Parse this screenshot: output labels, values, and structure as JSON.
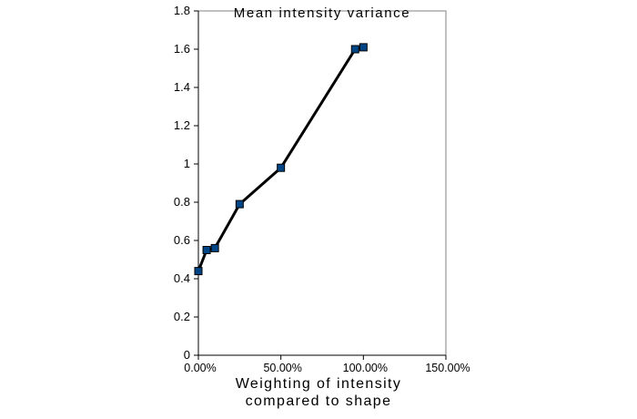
{
  "title_text": "Mean intensity variance",
  "x_axis_label_line1": "Weighting of intensity",
  "x_axis_label_line2": "compared to  shape",
  "chart_data": {
    "type": "line",
    "title": "Mean intensity variance",
    "xlabel": "Weighting of intensity compared to shape",
    "ylabel": "",
    "x": [
      0,
      5,
      10,
      25,
      50,
      95,
      100
    ],
    "y": [
      0.44,
      0.55,
      0.56,
      0.79,
      0.98,
      1.6,
      1.61
    ],
    "xlim": [
      0,
      150
    ],
    "ylim": [
      0,
      1.8
    ],
    "x_ticks": [
      {
        "value": 0,
        "label": "0.00%"
      },
      {
        "value": 50,
        "label": "50.00%"
      },
      {
        "value": 100,
        "label": "100.00%"
      },
      {
        "value": 150,
        "label": "150.00%"
      }
    ],
    "y_ticks": [
      {
        "value": 0,
        "label": "0"
      },
      {
        "value": 0.2,
        "label": "0.2"
      },
      {
        "value": 0.4,
        "label": "0.4"
      },
      {
        "value": 0.6,
        "label": "0.6"
      },
      {
        "value": 0.8,
        "label": "0.8"
      },
      {
        "value": 1,
        "label": "1"
      },
      {
        "value": 1.2,
        "label": "1.2"
      },
      {
        "value": 1.4,
        "label": "1.4"
      },
      {
        "value": 1.6,
        "label": "1.6"
      },
      {
        "value": 1.8,
        "label": "1.8"
      }
    ],
    "grid": false,
    "legend": "none",
    "line_color": "#000000",
    "line_width": 3,
    "marker_color": "#004586",
    "marker_edge_color": "#000000",
    "wall_border_color": "#808080",
    "axis_color": "#000000"
  }
}
